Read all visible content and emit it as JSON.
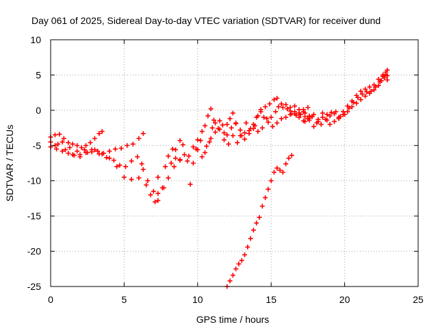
{
  "chart_data": {
    "type": "scatter",
    "title": "Day 061 of 2025, Sidereal Day-to-day VTEC variation (SDTVAR) for receiver dund",
    "xlabel": "GPS time / hours",
    "ylabel": "SDTVAR / TECUs",
    "xlim": [
      0,
      25
    ],
    "ylim": [
      -25,
      10
    ],
    "xticks": [
      0,
      5,
      10,
      15,
      20,
      25
    ],
    "yticks": [
      -25,
      -20,
      -15,
      -10,
      -5,
      0,
      5,
      10
    ],
    "grid": true,
    "marker": "+",
    "color": "#ff0000",
    "series": [
      {
        "values": [
          [
            0.0,
            -3.8
          ],
          [
            0.3,
            -3.5
          ],
          [
            0.6,
            -3.4
          ],
          [
            0.9,
            -4.0
          ],
          [
            1.2,
            -4.6
          ],
          [
            1.5,
            -4.8
          ],
          [
            1.8,
            -5.0
          ],
          [
            2.1,
            -5.3
          ],
          [
            2.4,
            -5.0
          ],
          [
            2.7,
            -4.6
          ],
          [
            3.0,
            -4.0
          ],
          [
            3.3,
            -3.3
          ],
          [
            3.5,
            -3.0
          ]
        ]
      },
      {
        "values": [
          [
            0.0,
            -5.2
          ],
          [
            0.4,
            -5.5
          ],
          [
            0.8,
            -5.8
          ],
          [
            1.2,
            -6.1
          ],
          [
            1.6,
            -6.4
          ],
          [
            2.0,
            -6.3
          ],
          [
            2.4,
            -6.0
          ],
          [
            2.8,
            -5.6
          ],
          [
            3.2,
            -5.8
          ],
          [
            3.6,
            -6.1
          ],
          [
            4.0,
            -5.8
          ],
          [
            4.4,
            -5.5
          ],
          [
            4.8,
            -5.4
          ],
          [
            5.2,
            -5.0
          ],
          [
            5.6,
            -4.8
          ],
          [
            6.0,
            -4.0
          ],
          [
            6.3,
            -3.3
          ]
        ]
      },
      {
        "values": [
          [
            0.0,
            -4.5
          ],
          [
            0.5,
            -4.8
          ],
          [
            1.0,
            -5.6
          ],
          [
            1.5,
            -6.3
          ],
          [
            2.0,
            -6.6
          ],
          [
            2.5,
            -6.0
          ],
          [
            3.0,
            -5.6
          ],
          [
            3.5,
            -6.2
          ],
          [
            4.0,
            -6.8
          ],
          [
            4.5,
            -8.0
          ],
          [
            5.0,
            -9.5
          ],
          [
            5.5,
            -9.8
          ],
          [
            6.0,
            -9.6
          ],
          [
            6.3,
            -8.4
          ],
          [
            6.6,
            -10.0
          ],
          [
            7.0,
            -11.5
          ],
          [
            7.3,
            -11.8
          ],
          [
            7.7,
            -11.0
          ],
          [
            8.0,
            -9.6
          ],
          [
            8.4,
            -8.0
          ],
          [
            8.8,
            -7.0
          ]
        ]
      },
      {
        "values": [
          [
            0.3,
            -5.0
          ],
          [
            0.8,
            -4.5
          ],
          [
            1.3,
            -5.3
          ],
          [
            1.8,
            -5.8
          ],
          [
            2.3,
            -5.6
          ],
          [
            2.8,
            -5.9
          ],
          [
            3.3,
            -6.2
          ],
          [
            3.8,
            -6.7
          ],
          [
            4.3,
            -7.1
          ],
          [
            4.7,
            -7.8
          ],
          [
            5.1,
            -8.0
          ],
          [
            5.5,
            -7.2
          ],
          [
            5.9,
            -6.6
          ],
          [
            6.2,
            -7.6
          ],
          [
            6.5,
            -10.6
          ],
          [
            6.8,
            -12.0
          ],
          [
            7.1,
            -13.0
          ],
          [
            7.3,
            -12.8
          ]
        ]
      },
      {
        "values": [
          [
            7.3,
            -9.5
          ],
          [
            7.6,
            -11.0
          ],
          [
            7.8,
            -8.0
          ],
          [
            8.0,
            -6.5
          ],
          [
            8.3,
            -5.5
          ],
          [
            8.5,
            -5.6
          ],
          [
            8.8,
            -4.3
          ],
          [
            9.0,
            -4.9
          ],
          [
            9.3,
            -7.2
          ],
          [
            9.5,
            -10.5
          ],
          [
            9.7,
            -7.5
          ],
          [
            9.9,
            -5.5
          ],
          [
            10.2,
            -4.3
          ],
          [
            10.5,
            -6.0
          ],
          [
            10.8,
            -4.5
          ],
          [
            11.0,
            -2.5
          ],
          [
            11.2,
            -1.8
          ],
          [
            11.5,
            -1.5
          ],
          [
            11.8,
            -3.2
          ],
          [
            12.0,
            -3.5
          ],
          [
            12.3,
            -2.5
          ],
          [
            12.6,
            -1.9
          ],
          [
            12.9,
            -2.8
          ],
          [
            13.2,
            -3.2
          ],
          [
            13.5,
            -2.9
          ],
          [
            13.8,
            -2.6
          ],
          [
            14.1,
            -3.0
          ],
          [
            14.4,
            -2.5
          ],
          [
            14.7,
            -1.2
          ],
          [
            15.0,
            -1.0
          ],
          [
            15.3,
            -0.2
          ],
          [
            15.5,
            0.5
          ],
          [
            15.8,
            0.4
          ],
          [
            16.1,
            0.2
          ],
          [
            16.4,
            -0.5
          ],
          [
            16.7,
            -0.7
          ],
          [
            17.0,
            -0.6
          ],
          [
            17.3,
            -0.4
          ],
          [
            17.6,
            -0.8
          ]
        ]
      },
      {
        "values": [
          [
            8.2,
            -7.5
          ],
          [
            8.5,
            -6.8
          ],
          [
            8.8,
            -7.1
          ],
          [
            9.1,
            -6.3
          ],
          [
            9.4,
            -6.5
          ],
          [
            9.7,
            -5.2
          ],
          [
            10.0,
            -5.6
          ],
          [
            10.3,
            -6.6
          ],
          [
            10.6,
            -5.1
          ],
          [
            10.9,
            -4.0
          ],
          [
            11.2,
            -3.1
          ],
          [
            11.5,
            -2.7
          ],
          [
            11.8,
            -4.2
          ],
          [
            12.1,
            -4.8
          ],
          [
            12.4,
            -3.6
          ],
          [
            12.7,
            -4.6
          ],
          [
            13.0,
            -3.6
          ],
          [
            13.3,
            -1.8
          ],
          [
            13.6,
            -2.6
          ],
          [
            13.9,
            -2.2
          ],
          [
            14.1,
            -0.8
          ],
          [
            14.3,
            -0.2
          ],
          [
            14.5,
            -1.0
          ],
          [
            14.8,
            -1.7
          ],
          [
            15.1,
            -2.3
          ],
          [
            15.4,
            -1.8
          ],
          [
            15.7,
            -1.2
          ],
          [
            16.0,
            -1.0
          ],
          [
            16.3,
            -0.6
          ],
          [
            16.6,
            -0.2
          ],
          [
            16.9,
            -0.4
          ],
          [
            17.2,
            0.1
          ],
          [
            17.5,
            0.4
          ]
        ]
      },
      {
        "values": [
          [
            10.0,
            -4.2
          ],
          [
            10.3,
            -3.0
          ],
          [
            10.5,
            -2.2
          ],
          [
            10.7,
            -0.8
          ],
          [
            10.9,
            0.2
          ],
          [
            11.1,
            -1.4
          ],
          [
            11.4,
            -2.6
          ],
          [
            11.7,
            -2.1
          ],
          [
            12.0,
            -2.0
          ],
          [
            12.2,
            -1.2
          ],
          [
            12.4,
            -0.4
          ],
          [
            12.6,
            -1.8
          ],
          [
            12.9,
            -3.6
          ],
          [
            13.2,
            -4.1
          ],
          [
            13.5,
            -3.3
          ],
          [
            13.8,
            -2.0
          ],
          [
            14.0,
            -1.0
          ],
          [
            14.3,
            0.1
          ],
          [
            14.6,
            0.5
          ],
          [
            14.9,
            0.9
          ],
          [
            15.2,
            1.5
          ],
          [
            15.4,
            1.7
          ],
          [
            15.7,
            0.9
          ],
          [
            16.0,
            0.8
          ],
          [
            16.3,
            0.4
          ],
          [
            16.6,
            0.6
          ],
          [
            16.9,
            0.1
          ],
          [
            17.2,
            -0.2
          ]
        ]
      },
      {
        "values": [
          [
            17.3,
            -1.6
          ],
          [
            17.6,
            -1.1
          ],
          [
            17.9,
            -0.6
          ],
          [
            18.2,
            -1.3
          ],
          [
            18.5,
            -0.4
          ],
          [
            18.8,
            -1.4
          ],
          [
            19.0,
            -2.0
          ],
          [
            19.3,
            -1.6
          ],
          [
            19.6,
            -1.2
          ],
          [
            19.9,
            -0.6
          ],
          [
            20.2,
            -0.2
          ],
          [
            20.5,
            0.5
          ],
          [
            20.8,
            1.0
          ],
          [
            21.1,
            1.5
          ],
          [
            21.4,
            2.0
          ],
          [
            21.7,
            2.4
          ],
          [
            22.0,
            2.9
          ],
          [
            22.3,
            3.5
          ],
          [
            22.5,
            4.2
          ],
          [
            22.7,
            4.6
          ],
          [
            22.9,
            4.9
          ]
        ]
      },
      {
        "values": [
          [
            17.0,
            -0.6
          ],
          [
            17.3,
            -0.9
          ],
          [
            17.6,
            -1.4
          ],
          [
            17.9,
            -2.3
          ],
          [
            18.2,
            -1.6
          ],
          [
            18.5,
            -1.0
          ],
          [
            18.8,
            -0.6
          ],
          [
            19.1,
            -0.3
          ],
          [
            19.4,
            -0.2
          ],
          [
            19.7,
            -0.9
          ],
          [
            20.0,
            -0.6
          ],
          [
            20.3,
            0.3
          ],
          [
            20.6,
            1.1
          ],
          [
            20.9,
            1.8
          ],
          [
            21.2,
            2.3
          ],
          [
            21.5,
            2.6
          ],
          [
            21.8,
            2.7
          ],
          [
            22.1,
            3.3
          ],
          [
            22.4,
            4.0
          ],
          [
            22.6,
            4.8
          ],
          [
            22.8,
            5.1
          ],
          [
            22.9,
            4.3
          ]
        ]
      },
      {
        "values": [
          [
            16.3,
            -0.1
          ],
          [
            16.6,
            -0.5
          ],
          [
            16.9,
            -1.0
          ],
          [
            17.2,
            -1.5
          ],
          [
            17.5,
            -1.2
          ],
          [
            17.8,
            -0.9
          ],
          [
            18.1,
            -1.8
          ],
          [
            18.4,
            -2.0
          ],
          [
            18.7,
            -1.3
          ],
          [
            19.0,
            -0.8
          ],
          [
            19.3,
            -0.5
          ],
          [
            19.6,
            -1.0
          ],
          [
            19.9,
            -0.2
          ],
          [
            20.2,
            0.6
          ],
          [
            20.5,
            1.3
          ],
          [
            20.8,
            2.1
          ],
          [
            21.1,
            2.7
          ],
          [
            21.4,
            3.0
          ],
          [
            21.7,
            3.3
          ],
          [
            22.0,
            3.6
          ],
          [
            22.3,
            4.4
          ],
          [
            22.6,
            5.0
          ],
          [
            22.8,
            5.4
          ],
          [
            22.9,
            5.7
          ]
        ]
      },
      {
        "values": [
          [
            12.0,
            -25.0
          ],
          [
            12.2,
            -24.2
          ],
          [
            12.4,
            -23.4
          ],
          [
            12.6,
            -22.5
          ],
          [
            12.8,
            -21.8
          ],
          [
            13.0,
            -21.3
          ],
          [
            13.2,
            -20.5
          ],
          [
            13.4,
            -19.4
          ],
          [
            13.6,
            -18.2
          ],
          [
            13.8,
            -17.0
          ],
          [
            14.0,
            -16.0
          ],
          [
            14.2,
            -15.2
          ],
          [
            14.4,
            -13.6
          ],
          [
            14.6,
            -12.4
          ],
          [
            14.8,
            -11.2
          ],
          [
            15.0,
            -10.0
          ],
          [
            15.2,
            -8.8
          ],
          [
            15.4,
            -8.2
          ],
          [
            15.6,
            -8.5
          ],
          [
            15.8,
            -8.8
          ],
          [
            16.0,
            -7.6
          ],
          [
            16.2,
            -6.8
          ],
          [
            16.4,
            -6.4
          ]
        ]
      }
    ]
  }
}
